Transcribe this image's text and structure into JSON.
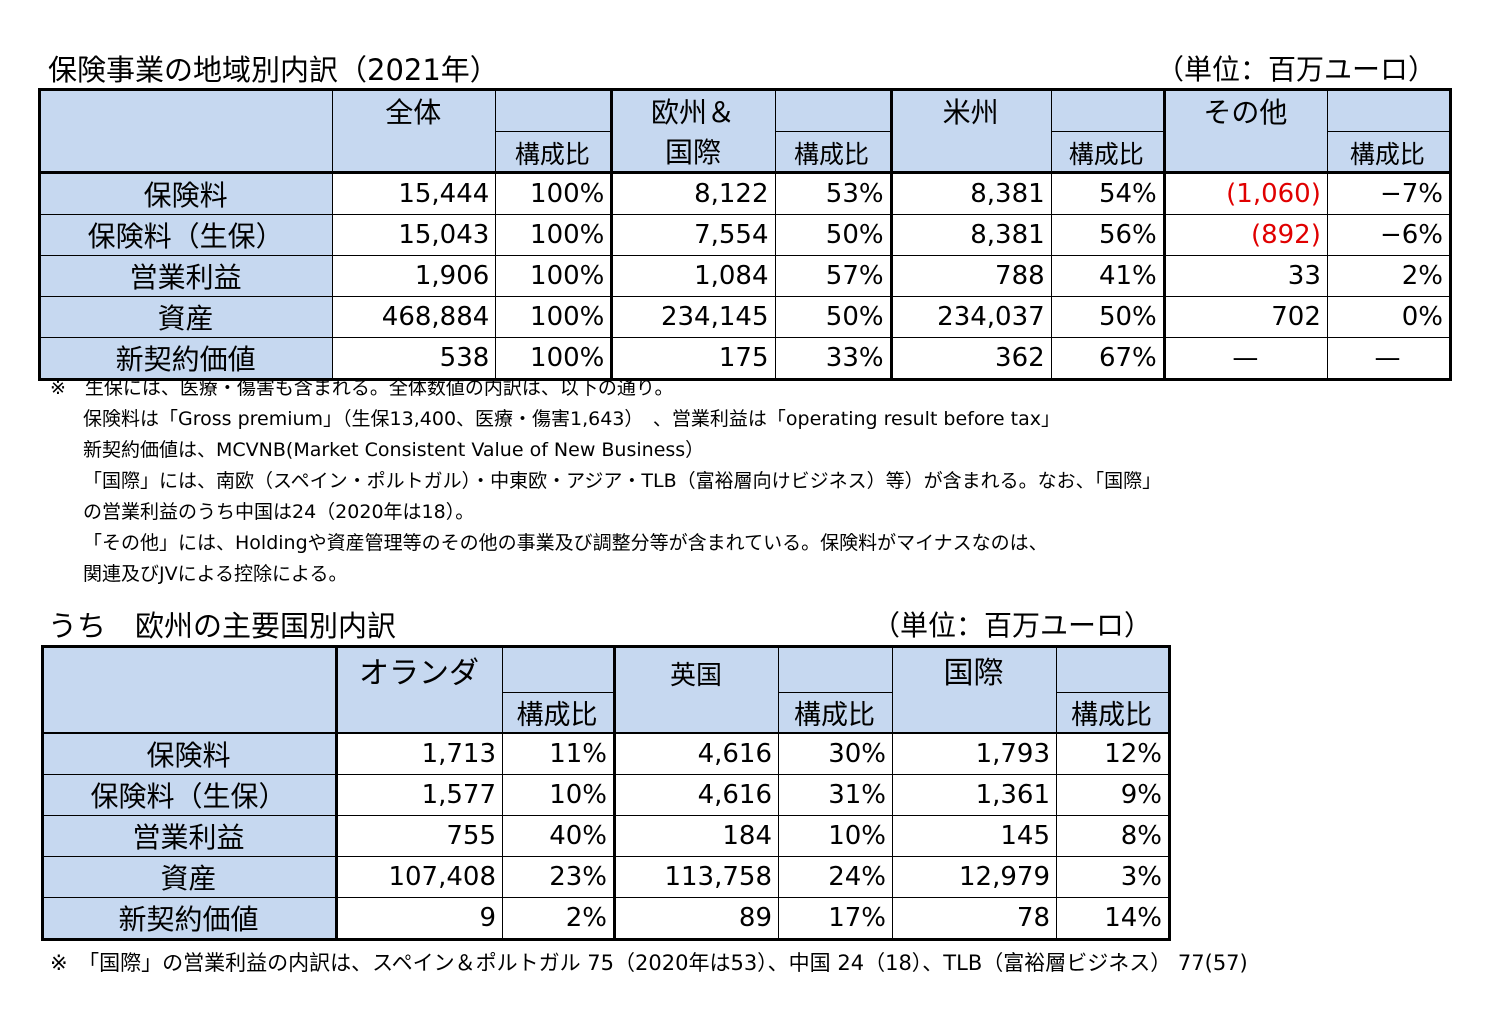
{
  "table1": {
    "title": "保険事業の地域別内訳（2021年）",
    "unit": "（単位：百万ユーロ）",
    "groups": [
      "全体",
      "欧州＆",
      "国際",
      "米州",
      "その他"
    ],
    "sub": "構成比",
    "rows": [
      {
        "label": "保険料",
        "cells": [
          "15,444",
          "100%",
          "8,122",
          "53%",
          "8,381",
          "54%",
          "(1,060)",
          "−7%"
        ]
      },
      {
        "label": "保険料（生保）",
        "cells": [
          "15,043",
          "100%",
          "7,554",
          "50%",
          "8,381",
          "56%",
          "(892)",
          "−6%"
        ]
      },
      {
        "label": "営業利益",
        "cells": [
          "1,906",
          "100%",
          "1,084",
          "57%",
          "788",
          "41%",
          "33",
          "2%"
        ]
      },
      {
        "label": "資産",
        "cells": [
          "468,884",
          "100%",
          "234,145",
          "50%",
          "234,037",
          "50%",
          "702",
          "0%"
        ]
      },
      {
        "label": "新契約価値",
        "cells": [
          "538",
          "100%",
          "175",
          "33%",
          "362",
          "67%",
          "—",
          "—"
        ]
      }
    ]
  },
  "notes": [
    "※　生保には、医療・傷害も含まれる。全体数値の内訳は、以下の通り。",
    "保険料は「Gross premium」（生保13,400、医療・傷害1,643）　、営業利益は「operating result before tax」",
    "新契約価値は、MCVNB(Market Consistent Value of New Business）",
    "「国際」には、南欧（スペイン・ポルトガル）・中東欧・アジア・TLB（富裕層向けビジネス）等）が含まれる。なお、「国際」",
    "の営業利益のうち中国は24（2020年は18）。",
    "「その他」には、Holdingや資産管理等のその他の事業及び調整分等が含まれている。保険料がマイナスなのは、",
    "関連及びJVによる控除による。"
  ],
  "table2": {
    "title": "うち　欧州の主要国別内訳",
    "unit": "（単位：百万ユーロ）",
    "groups": [
      "オランダ",
      "英国",
      "国際"
    ],
    "sub": "構成比",
    "rows": [
      {
        "label": "保険料",
        "cells": [
          "1,713",
          "11%",
          "4,616",
          "30%",
          "1,793",
          "12%"
        ]
      },
      {
        "label": "保険料（生保）",
        "cells": [
          "1,577",
          "10%",
          "4,616",
          "31%",
          "1,361",
          "9%"
        ]
      },
      {
        "label": "営業利益",
        "cells": [
          "755",
          "40%",
          "184",
          "10%",
          "145",
          "8%"
        ]
      },
      {
        "label": "資産",
        "cells": [
          "107,408",
          "23%",
          "113,758",
          "24%",
          "12,979",
          "3%"
        ]
      },
      {
        "label": "新契約価値",
        "cells": [
          "9",
          "2%",
          "89",
          "17%",
          "78",
          "14%"
        ]
      }
    ]
  },
  "note2": "※　「国際」の営業利益の内訳は、スペイン＆ポルトガル 75（2020年は53）、中国 24（18）、TLB（富裕層ビジネス） 77(57)"
}
